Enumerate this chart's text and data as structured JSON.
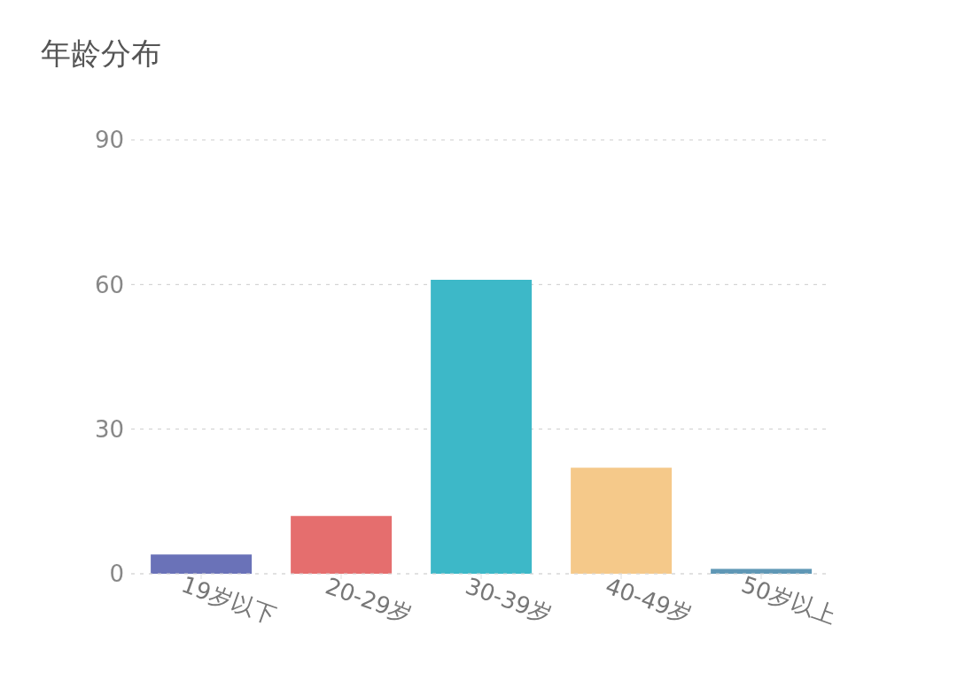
{
  "chart_data": {
    "type": "bar",
    "title": "年龄分布",
    "categories": [
      "19岁以下",
      "20-29岁",
      "30-39岁",
      "40-49岁",
      "50岁以上"
    ],
    "values": [
      4,
      12,
      61,
      22,
      1
    ],
    "colors": [
      "#6a72b8",
      "#e56e6e",
      "#3db8c8",
      "#f5c98a",
      "#5f97b5"
    ],
    "ylim": [
      0,
      90
    ],
    "yticks": [
      0,
      30,
      60,
      90
    ],
    "grid": "y"
  }
}
